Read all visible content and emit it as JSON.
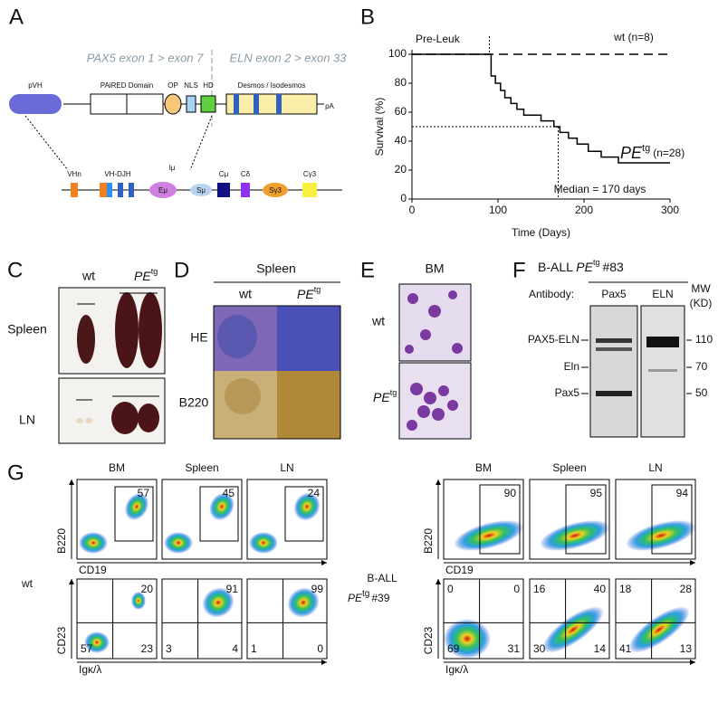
{
  "panel_labels": [
    "A",
    "B",
    "C",
    "D",
    "E",
    "F",
    "G"
  ],
  "panel_a": {
    "exon_labels": [
      "PAX5 exon 1 > exon 7",
      "ELN exon 2 > exon 33"
    ],
    "domains": [
      "pVH",
      "PAiRED Domain",
      "OP",
      "NLS",
      "HD",
      "Desmos / Isodesmos",
      "pA"
    ],
    "locus": [
      "VHn",
      "VH-DJH",
      "Iμ",
      "Eμ",
      "Sμ",
      "Cμ",
      "Cδ",
      "Sγ3",
      "Cγ3"
    ]
  },
  "chart_data": {
    "type": "line",
    "xlabel": "Time (Days)",
    "ylabel": "Survival (%)",
    "xlim": [
      0,
      300
    ],
    "ylim": [
      0,
      100
    ],
    "xticks": [
      0,
      100,
      200,
      300
    ],
    "yticks": [
      0,
      20,
      40,
      60,
      80,
      100
    ],
    "annotations": [
      "Pre-Leuk",
      "Median = 170 days"
    ],
    "markers": {
      "pre_leuk_x": 90,
      "median_x": 170,
      "median_y": 50
    },
    "series": [
      {
        "name": "wt (n=8)",
        "color": "#000000",
        "dash": true,
        "x": [
          0,
          300
        ],
        "values": [
          100,
          100
        ]
      },
      {
        "name": "PE",
        "superscript": "tg",
        "count": "(n=28)",
        "color": "#000000",
        "dash": false,
        "x": [
          0,
          92,
          92,
          97,
          97,
          103,
          103,
          108,
          108,
          115,
          115,
          122,
          122,
          130,
          130,
          150,
          150,
          165,
          165,
          172,
          172,
          182,
          182,
          192,
          192,
          205,
          205,
          220,
          220,
          240,
          240,
          300
        ],
        "values": [
          100,
          100,
          85,
          85,
          80,
          80,
          75,
          75,
          70,
          70,
          66,
          66,
          62,
          62,
          58,
          58,
          54,
          54,
          50,
          50,
          46,
          46,
          42,
          42,
          38,
          38,
          33,
          33,
          29,
          29,
          25,
          25
        ]
      }
    ]
  },
  "panel_c": {
    "columns": [
      "wt",
      "PE"
    ],
    "superscript": "tg",
    "rows": [
      "Spleen",
      "LN"
    ]
  },
  "panel_d": {
    "title": "Spleen",
    "columns": [
      "wt",
      "PE"
    ],
    "superscript": "tg",
    "rows": [
      "HE",
      "B220"
    ]
  },
  "panel_e": {
    "title": "BM",
    "rows": [
      "wt",
      "PE"
    ],
    "superscript": "tg"
  },
  "panel_f": {
    "title": [
      "B-ALL",
      "PE",
      "tg",
      "#83"
    ],
    "antibody": "Antibody:",
    "lanes": [
      "Pax5",
      "ELN"
    ],
    "mw_title": [
      "MW",
      "(KD)"
    ],
    "bands": [
      "PAX5-ELN",
      "Eln",
      "Pax5"
    ],
    "mw": [
      110,
      70,
      50
    ]
  },
  "panel_g": {
    "columns": [
      "BM",
      "Spleen",
      "LN"
    ],
    "axes": [
      "B220",
      "CD19",
      "CD23",
      "Igκ/λ"
    ],
    "left": {
      "label": "wt",
      "gates": [
        57,
        45,
        24
      ],
      "quadrants": [
        {
          "ur": 20,
          "ll": 57,
          "lr": 23
        },
        {
          "ur": 91,
          "ll": 3,
          "lr": 4
        },
        {
          "ur": 99,
          "ll": 1,
          "lr": 0
        }
      ]
    },
    "right": {
      "label": [
        "B-ALL",
        "PE",
        "tg",
        "#39"
      ],
      "gates": [
        90,
        95,
        94
      ],
      "quadrants": [
        {
          "ul": 0,
          "ur": 0,
          "ll": 69,
          "lr": 31
        },
        {
          "ul": 16,
          "ur": 40,
          "ll": 30,
          "lr": 14
        },
        {
          "ul": 18,
          "ur": 28,
          "ll": 41,
          "lr": 13
        }
      ]
    }
  }
}
